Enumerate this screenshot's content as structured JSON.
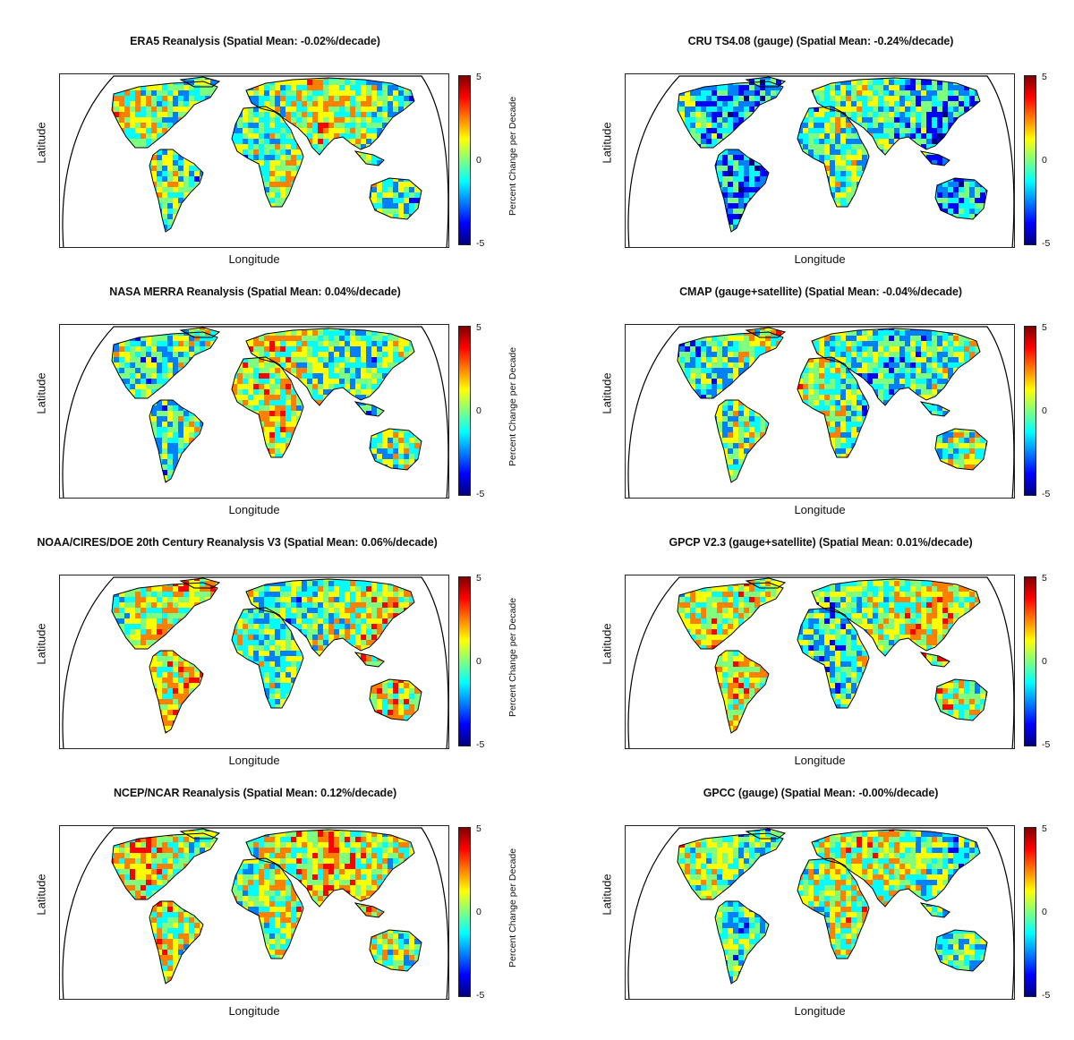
{
  "axis": {
    "xlabel": "Longitude",
    "ylabel": "Latitude"
  },
  "colorbar": {
    "label": "Percent Change per Decade",
    "max_label": "5",
    "mid_label": "0",
    "min_label": "-5",
    "colors": [
      "#00007f",
      "#0000ff",
      "#007fff",
      "#00ffff",
      "#7fff7f",
      "#ffff00",
      "#ff7f00",
      "#ff0000",
      "#7f0000"
    ]
  },
  "chart_data": [
    {
      "type": "heatmap",
      "title": "ERA5 Reanalysis (Spatial Mean: -0.02%/decade)",
      "spatial_mean": -0.02,
      "unit": "%/decade",
      "xlabel": "Longitude",
      "ylabel": "Latitude",
      "colorbar_range": [
        -5,
        5
      ],
      "colorbar_ticks": [
        -5,
        0,
        5
      ],
      "colorbar_label": "Percent Change per Decade"
    },
    {
      "type": "heatmap",
      "title": "CRU TS4.08 (gauge) (Spatial Mean: -0.24%/decade)",
      "spatial_mean": -0.24,
      "unit": "%/decade",
      "xlabel": "Longitude",
      "ylabel": "Latitude",
      "colorbar_range": [
        -5,
        5
      ],
      "colorbar_ticks": [
        -5,
        0,
        5
      ],
      "colorbar_label": "Percent Change per Decade"
    },
    {
      "type": "heatmap",
      "title": "NASA MERRA Reanalysis (Spatial Mean: 0.04%/decade)",
      "spatial_mean": 0.04,
      "unit": "%/decade",
      "xlabel": "Longitude",
      "ylabel": "Latitude",
      "colorbar_range": [
        -5,
        5
      ],
      "colorbar_ticks": [
        -5,
        0,
        5
      ],
      "colorbar_label": "Percent Change per Decade"
    },
    {
      "type": "heatmap",
      "title": "CMAP (gauge+satellite) (Spatial Mean: -0.04%/decade)",
      "spatial_mean": -0.04,
      "unit": "%/decade",
      "xlabel": "Longitude",
      "ylabel": "Latitude",
      "colorbar_range": [
        -5,
        5
      ],
      "colorbar_ticks": [
        -5,
        0,
        5
      ],
      "colorbar_label": "Percent Change per Decade"
    },
    {
      "type": "heatmap",
      "title": "NOAA/CIRES/DOE 20th Century Reanalysis V3 (Spatial Mean: 0.06%/decade)",
      "spatial_mean": 0.06,
      "unit": "%/decade",
      "xlabel": "Longitude",
      "ylabel": "Latitude",
      "colorbar_range": [
        -5,
        5
      ],
      "colorbar_ticks": [
        -5,
        0,
        5
      ],
      "colorbar_label": "Percent Change per Decade"
    },
    {
      "type": "heatmap",
      "title": "GPCP V2.3 (gauge+satellite) (Spatial Mean: 0.01%/decade)",
      "spatial_mean": 0.01,
      "unit": "%/decade",
      "xlabel": "Longitude",
      "ylabel": "Latitude",
      "colorbar_range": [
        -5,
        5
      ],
      "colorbar_ticks": [
        -5,
        0,
        5
      ],
      "colorbar_label": "Percent Change per Decade"
    },
    {
      "type": "heatmap",
      "title": "NCEP/NCAR Reanalysis (Spatial Mean: 0.12%/decade)",
      "spatial_mean": 0.12,
      "unit": "%/decade",
      "xlabel": "Longitude",
      "ylabel": "Latitude",
      "colorbar_range": [
        -5,
        5
      ],
      "colorbar_ticks": [
        -5,
        0,
        5
      ],
      "colorbar_label": "Percent Change per Decade"
    },
    {
      "type": "heatmap",
      "title": "GPCC (gauge) (Spatial Mean: -0.00%/decade)",
      "spatial_mean": -0.0,
      "unit": "%/decade",
      "xlabel": "Longitude",
      "ylabel": "Latitude",
      "colorbar_range": [
        -5,
        5
      ],
      "colorbar_ticks": [
        -5,
        0,
        5
      ],
      "colorbar_label": "Percent Change per Decade"
    }
  ]
}
